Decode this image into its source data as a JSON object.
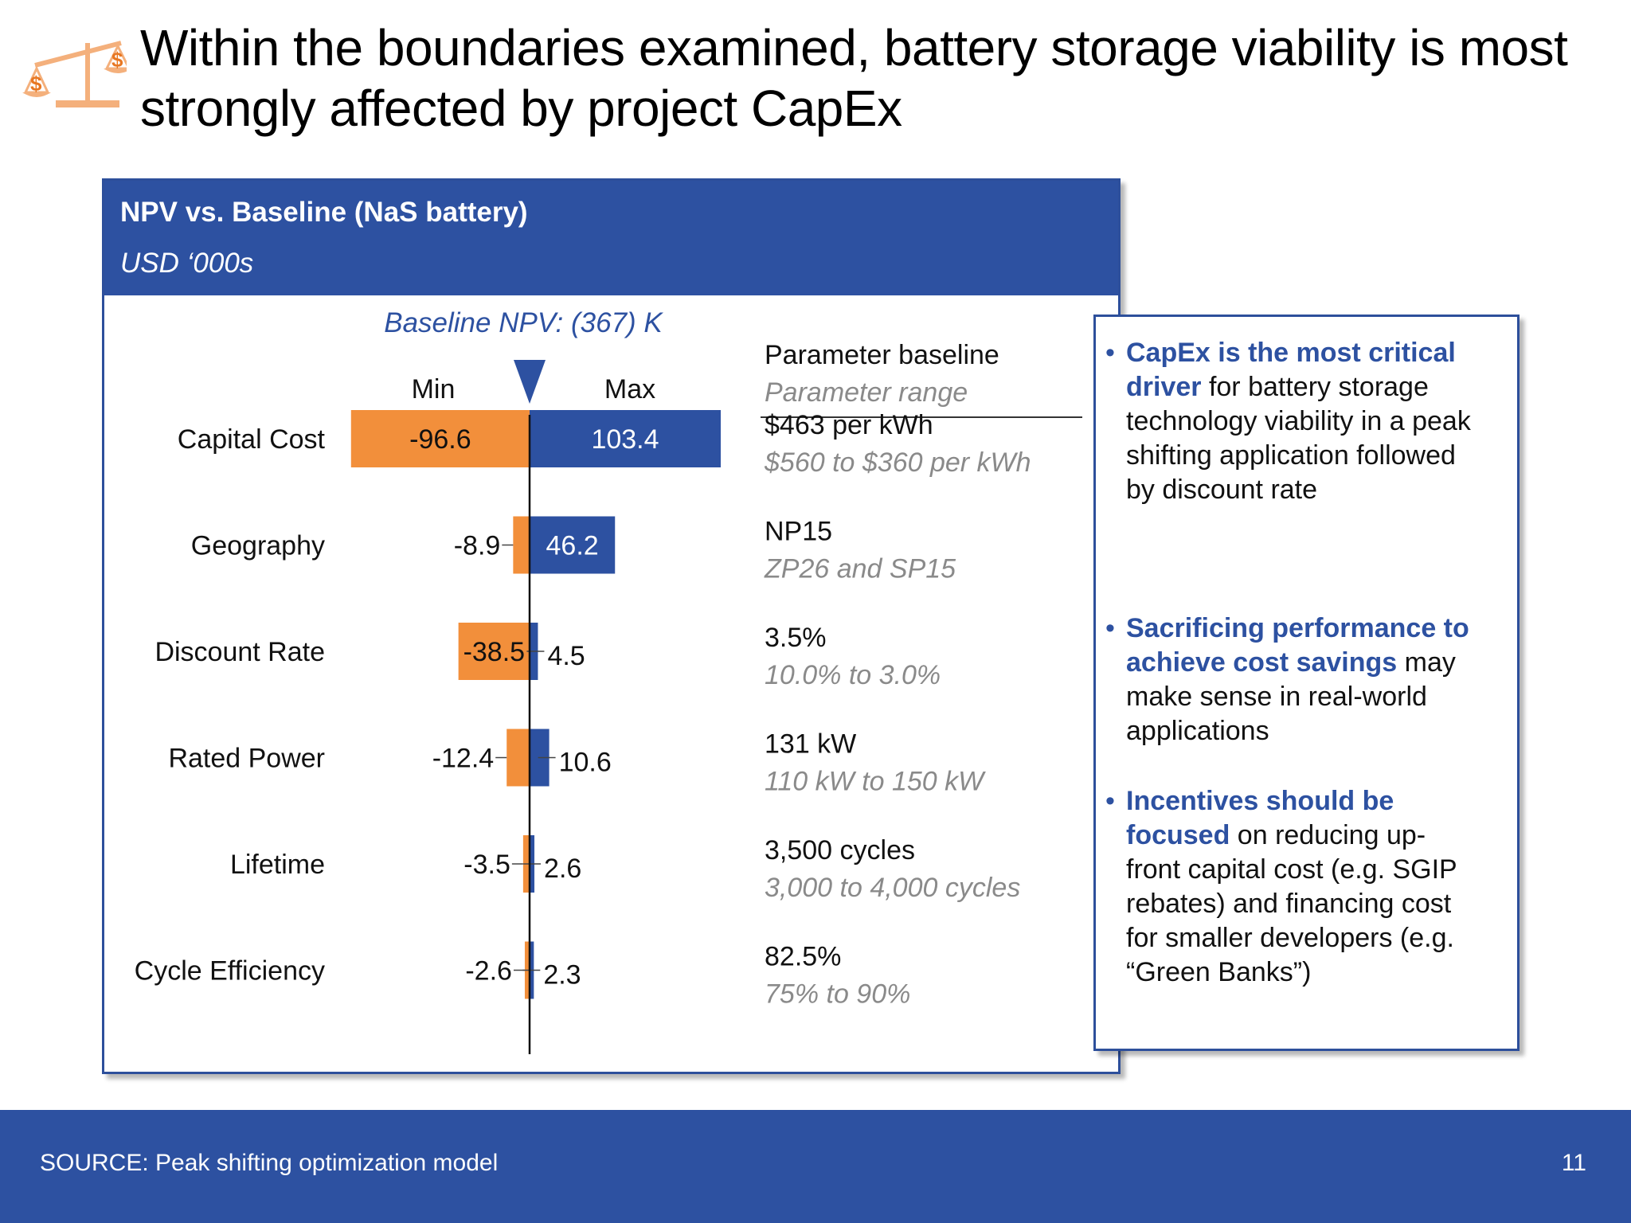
{
  "slide": {
    "title": "Within the boundaries examined, battery storage viability is most strongly affected by project CapEx",
    "page_number": "11",
    "source": "SOURCE: Peak shifting optimization model"
  },
  "panel": {
    "title": "NPV vs. Baseline (NaS battery)",
    "units": "USD ‘000s"
  },
  "colors": {
    "min": "#f28f3b",
    "max": "#2d51a1",
    "param_range": "#8a8a8a",
    "accent": "#2d51a1"
  },
  "icons": {
    "logo": "balance-scale-icon",
    "baseline": "triangle-down-icon",
    "bullet": "bullet-dot-icon"
  },
  "chart_data": {
    "type": "bar",
    "baseline_label": "Baseline NPV: (367) K",
    "min_label": "Min",
    "max_label": "Max",
    "param_header": "Parameter baseline",
    "range_header": "Parameter range",
    "categories": [
      "Capital Cost",
      "Geography",
      "Discount Rate",
      "Rated Power",
      "Lifetime",
      "Cycle Efficiency"
    ],
    "series": [
      {
        "name": "Min",
        "values": [
          -96.6,
          -8.9,
          -38.5,
          -12.4,
          -3.5,
          -2.6
        ]
      },
      {
        "name": "Max",
        "values": [
          103.4,
          46.2,
          4.5,
          10.6,
          2.6,
          2.3
        ]
      }
    ],
    "min_labels": [
      "-96.6",
      "-8.9",
      "-38.5",
      "-12.4",
      "-3.5",
      "-2.6"
    ],
    "max_labels": [
      "103.4",
      "46.2",
      "4.5",
      "10.6",
      "2.6",
      "2.3"
    ],
    "param_baselines": [
      "$463 per kWh",
      "NP15",
      "3.5%",
      "131 kW",
      "3,500 cycles",
      "82.5%"
    ],
    "param_ranges": [
      "$560 to $360 per kWh",
      "ZP26 and SP15",
      "10.0% to 3.0%",
      "110 kW to 150 kW",
      "3,000 to 4,000 cycles",
      "75% to 90%"
    ],
    "xlim": [
      -103.4,
      103.4
    ],
    "orientation": "horizontal"
  },
  "bullets": [
    {
      "highlight": "CapEx is the most critical driver",
      "text": " for battery storage technology viability in a peak shifting application followed by discount rate"
    },
    {
      "highlight": "Sacrificing performance to achieve cost savings",
      "text": " may make sense in real-world applications"
    },
    {
      "highlight": "Incentives should be focused",
      "text": " on reducing up-front capital cost (e.g. SGIP rebates) and financing cost for smaller developers (e.g. “Green Banks”)"
    }
  ]
}
